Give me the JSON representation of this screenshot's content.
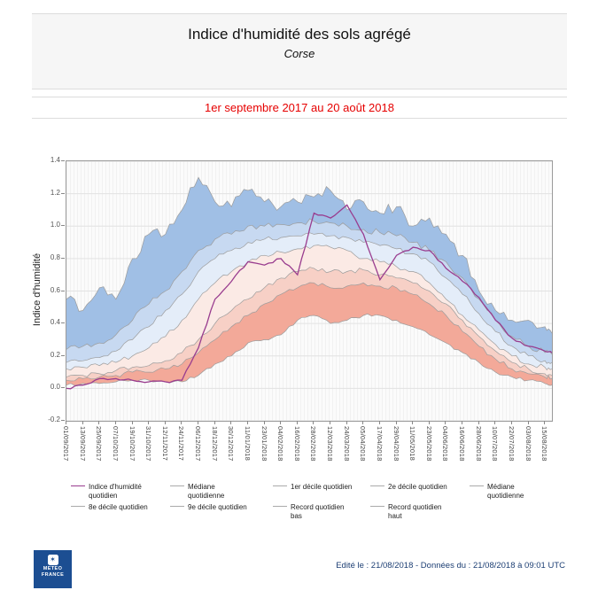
{
  "header": {
    "title": "Indice d'humidité des sols agrégé",
    "subtitle": "Corse"
  },
  "period_banner": {
    "text": "1er septembre 2017 au 20 août 2018",
    "color": "#e60000"
  },
  "footer": {
    "logo_lines": [
      "METEO",
      "FRANCE"
    ],
    "logo_color": "#1c4e92",
    "edited": "Edité le : 21/08/2018 - Données du : 21/08/2018 à 09:01 UTC"
  },
  "chart_data": {
    "type": "area",
    "title": "Indice d'humidité des sols agrégé",
    "subtitle": "Corse",
    "ylabel": "Indice d'humidité",
    "ylim": [
      -0.2,
      1.4
    ],
    "grid": true,
    "legend_position": "bottom",
    "yticks": [
      "1.4",
      "1.2",
      "1.0",
      "0.8",
      "0.6",
      "0.4",
      "0.2",
      "0.0",
      "-0.2"
    ],
    "ytick_values": [
      1.4,
      1.2,
      1.0,
      0.8,
      0.6,
      0.4,
      0.2,
      0.0,
      -0.2
    ],
    "x_total_days": 353,
    "x_tick_days": [
      0,
      12,
      24,
      36,
      48,
      60,
      72,
      84,
      96,
      108,
      120,
      132,
      144,
      156,
      168,
      180,
      192,
      204,
      216,
      228,
      240,
      252,
      264,
      276,
      288,
      300,
      312,
      324,
      336,
      348
    ],
    "x_tick_labels": [
      "01/09/2017",
      "13/09/2017",
      "25/09/2017",
      "07/10/2017",
      "19/10/2017",
      "31/10/2017",
      "12/11/2017",
      "24/11/2017",
      "06/12/2017",
      "18/12/2017",
      "30/12/2017",
      "11/01/2018",
      "23/01/2018",
      "04/02/2018",
      "16/02/2018",
      "28/02/2018",
      "12/03/2018",
      "24/03/2018",
      "05/04/2018",
      "17/04/2018",
      "29/04/2018",
      "11/05/2018",
      "23/05/2018",
      "04/06/2018",
      "16/06/2018",
      "28/06/2018",
      "10/07/2018",
      "22/07/2018",
      "03/08/2018",
      "15/08/2018"
    ],
    "x_days": [
      0,
      12,
      24,
      36,
      48,
      60,
      72,
      84,
      96,
      108,
      120,
      132,
      144,
      156,
      168,
      180,
      192,
      204,
      216,
      228,
      240,
      252,
      264,
      276,
      288,
      300,
      312,
      324,
      336,
      348,
      353
    ],
    "boundaries": [
      {
        "name": "Record quotidien bas",
        "values": [
          0.02,
          0.03,
          0.03,
          0.04,
          0.05,
          0.05,
          0.04,
          0.04,
          0.08,
          0.15,
          0.2,
          0.28,
          0.3,
          0.33,
          0.42,
          0.45,
          0.4,
          0.42,
          0.45,
          0.45,
          0.42,
          0.38,
          0.33,
          0.28,
          0.22,
          0.16,
          0.1,
          0.07,
          0.05,
          0.03,
          0.02
        ]
      },
      {
        "name": "1er décile quotidien",
        "values": [
          0.05,
          0.06,
          0.07,
          0.08,
          0.1,
          0.1,
          0.12,
          0.15,
          0.22,
          0.3,
          0.38,
          0.45,
          0.52,
          0.58,
          0.62,
          0.65,
          0.62,
          0.63,
          0.65,
          0.63,
          0.62,
          0.58,
          0.52,
          0.45,
          0.35,
          0.26,
          0.18,
          0.12,
          0.09,
          0.07,
          0.06
        ]
      },
      {
        "name": "2e décile quotidien",
        "values": [
          0.07,
          0.08,
          0.09,
          0.11,
          0.13,
          0.14,
          0.17,
          0.22,
          0.3,
          0.4,
          0.48,
          0.55,
          0.62,
          0.68,
          0.72,
          0.74,
          0.72,
          0.72,
          0.73,
          0.7,
          0.68,
          0.65,
          0.6,
          0.52,
          0.42,
          0.32,
          0.23,
          0.16,
          0.12,
          0.09,
          0.08
        ]
      },
      {
        "name": "Médiane quotidienne",
        "values": [
          0.12,
          0.13,
          0.14,
          0.16,
          0.2,
          0.25,
          0.32,
          0.42,
          0.55,
          0.65,
          0.72,
          0.78,
          0.82,
          0.84,
          0.86,
          0.88,
          0.87,
          0.85,
          0.8,
          0.78,
          0.75,
          0.72,
          0.65,
          0.55,
          0.45,
          0.36,
          0.27,
          0.2,
          0.15,
          0.13,
          0.12
        ]
      },
      {
        "name": "8e décile quotidien",
        "values": [
          0.16,
          0.17,
          0.19,
          0.23,
          0.3,
          0.38,
          0.48,
          0.58,
          0.72,
          0.8,
          0.85,
          0.9,
          0.92,
          0.93,
          0.94,
          0.95,
          0.94,
          0.93,
          0.9,
          0.88,
          0.86,
          0.83,
          0.78,
          0.68,
          0.58,
          0.46,
          0.35,
          0.26,
          0.2,
          0.17,
          0.16
        ]
      },
      {
        "name": "9e décile quotidien",
        "values": [
          0.24,
          0.26,
          0.28,
          0.33,
          0.42,
          0.52,
          0.6,
          0.72,
          0.85,
          0.92,
          0.95,
          1.0,
          1.0,
          1.01,
          1.02,
          1.03,
          1.02,
          1.0,
          0.98,
          0.96,
          0.94,
          0.9,
          0.85,
          0.78,
          0.68,
          0.55,
          0.42,
          0.32,
          0.26,
          0.22,
          0.21
        ]
      },
      {
        "name": "Record quotidien haut",
        "values": [
          0.55,
          0.48,
          0.62,
          0.55,
          0.8,
          0.95,
          0.95,
          1.1,
          1.3,
          1.15,
          1.12,
          1.22,
          1.15,
          1.12,
          1.15,
          1.18,
          1.22,
          1.1,
          1.15,
          1.08,
          1.12,
          1.0,
          1.05,
          0.95,
          0.82,
          0.6,
          0.48,
          0.42,
          0.42,
          0.38,
          0.34
        ]
      }
    ],
    "observed": {
      "name": "Indice d'humidité quotidien",
      "color": "#993d8f",
      "values": [
        0.0,
        0.02,
        0.06,
        0.06,
        0.05,
        0.04,
        0.04,
        0.05,
        0.25,
        0.55,
        0.66,
        0.78,
        0.76,
        0.8,
        0.7,
        1.08,
        1.05,
        1.13,
        0.95,
        0.67,
        0.82,
        0.87,
        0.85,
        0.74,
        0.66,
        0.56,
        0.42,
        0.31,
        0.26,
        0.23,
        0.22
      ]
    },
    "band_fills": [
      "#f3a999",
      "#f7d0c6",
      "#fbeae5",
      "#e4edf9",
      "#c7d9f1",
      "#a0bfe5"
    ],
    "boundary_stroke": "#9c9c9c",
    "gridline_color": "#e2e2e2",
    "legend": [
      {
        "label": "Indice d'humidité quotidien",
        "color": "#993d8f"
      },
      {
        "label": "Médiane quotidienne",
        "color": "#aaaaaa"
      },
      {
        "label": "1er décile quotidien",
        "color": "#aaaaaa"
      },
      {
        "label": "2e décile quotidien",
        "color": "#aaaaaa"
      },
      {
        "label": "Médiane quotidienne",
        "color": "#aaaaaa"
      },
      {
        "label": "8e décile quotidien",
        "color": "#aaaaaa"
      },
      {
        "label": "9e décile quotidien",
        "color": "#aaaaaa"
      },
      {
        "label": "Record quotidien bas",
        "color": "#aaaaaa"
      },
      {
        "label": "Record quotidien haut",
        "color": "#aaaaaa"
      }
    ]
  }
}
